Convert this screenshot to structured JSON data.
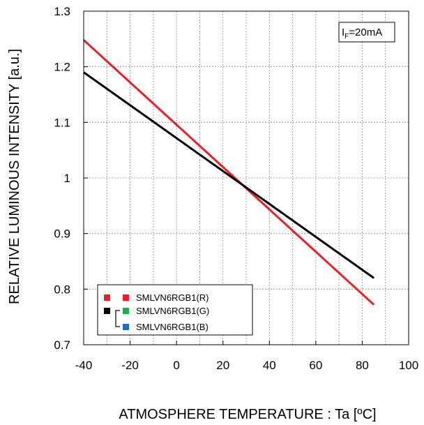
{
  "chart_data": {
    "type": "line",
    "xlabel": "ATMOSPHERE TEMPERATURE : Ta [ºC]",
    "ylabel": "RELATIVE LUMINOUS INTENSITY [a.u.]",
    "xlim": [
      -40,
      100
    ],
    "ylim": [
      0.7,
      1.3
    ],
    "x_ticks": [
      -40,
      -20,
      0,
      20,
      40,
      60,
      80,
      100
    ],
    "x_tick_labels": [
      "-40",
      "-20",
      "0",
      "20",
      "40",
      "60",
      "80",
      "100"
    ],
    "y_ticks": [
      0.7,
      0.8,
      0.9,
      1.0,
      1.1,
      1.2,
      1.3
    ],
    "y_tick_labels": [
      "0.7",
      "0.8",
      "0.9",
      "1",
      "1.1",
      "1.2",
      "1.3"
    ],
    "x_minor_step": 10,
    "y_minor_step": 0.05,
    "grid": true,
    "condition_label": {
      "main": "I",
      "sub": "F",
      "rest": "=20mA"
    },
    "legend_position": "bottom-left",
    "legend": [
      {
        "label": "SMLVN6RGB1(R)",
        "color": "#ee1c25"
      },
      {
        "label": "SMLVN6RGB1(G)",
        "color": "#1fae4b"
      },
      {
        "label": "SMLVN6RGB1(B)",
        "color": "#1f6fbf"
      }
    ],
    "series": [
      {
        "color": "#ee1c25",
        "x": [
          -40,
          85
        ],
        "y": [
          1.248,
          0.772
        ]
      },
      {
        "color": "#000000",
        "x": [
          -40,
          85
        ],
        "y": [
          1.19,
          0.82
        ]
      }
    ]
  }
}
